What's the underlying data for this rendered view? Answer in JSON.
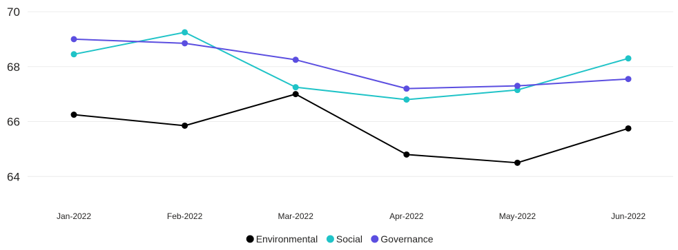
{
  "chart_data": {
    "type": "line",
    "title": "",
    "xlabel": "",
    "ylabel": "",
    "categories": [
      "Jan-2022",
      "Feb-2022",
      "Mar-2022",
      "Apr-2022",
      "May-2022",
      "Jun-2022"
    ],
    "ylim": [
      63,
      70
    ],
    "yticks": [
      64,
      66,
      68,
      70
    ],
    "grid": true,
    "legend_position": "bottom",
    "series": [
      {
        "name": "Environmental",
        "color": "#000000",
        "values": [
          66.25,
          65.85,
          67.0,
          64.8,
          64.5,
          65.75
        ]
      },
      {
        "name": "Social",
        "color": "#1fc3c7",
        "values": [
          68.45,
          69.25,
          67.25,
          66.8,
          67.15,
          68.3
        ]
      },
      {
        "name": "Governance",
        "color": "#5b4ee0",
        "values": [
          69.0,
          68.85,
          68.25,
          67.2,
          67.3,
          67.55
        ]
      }
    ]
  }
}
